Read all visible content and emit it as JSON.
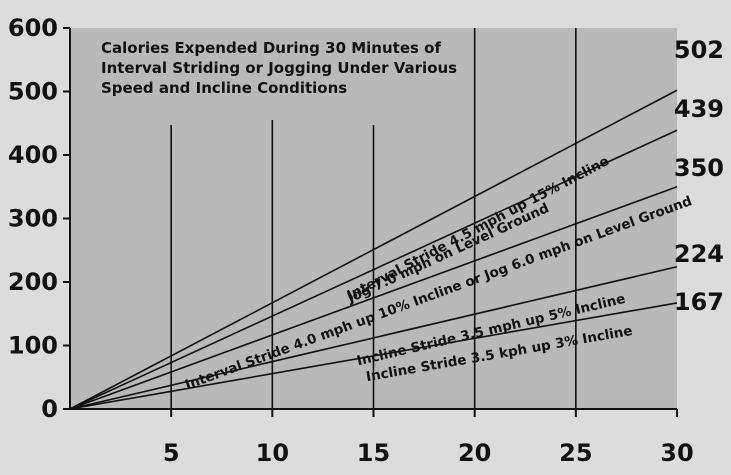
{
  "chart_data": {
    "type": "line",
    "title_lines": [
      "Calories Expended During 30 Minutes of",
      "Interval Striding or Jogging Under Various",
      "Speed and Incline Conditions"
    ],
    "xlabel": "",
    "ylabel": "",
    "xlim": [
      0,
      30
    ],
    "ylim": [
      0,
      600
    ],
    "x_ticks": [
      5,
      10,
      15,
      20,
      25,
      30
    ],
    "y_ticks": [
      0,
      100,
      200,
      300,
      400,
      500,
      600
    ],
    "vertical_gridlines_at": [
      5,
      10,
      15,
      20,
      25
    ],
    "series": [
      {
        "name": "Interval Stride 4.5 mph up 15% Incline",
        "x": [
          0,
          30
        ],
        "y": [
          0,
          502
        ],
        "end_label": "502"
      },
      {
        "name": "Jog 7.0 mph on Level Ground",
        "x": [
          0,
          30
        ],
        "y": [
          0,
          439
        ],
        "end_label": "439"
      },
      {
        "name": "Interval Stride 4.0 mph up 10% Incline or Jog 6.0 mph on Level Ground",
        "x": [
          0,
          30
        ],
        "y": [
          0,
          350
        ],
        "end_label": "350"
      },
      {
        "name": "Incline Stride 3.5 mph up 5% Incline",
        "x": [
          0,
          30
        ],
        "y": [
          0,
          224
        ],
        "end_label": "224"
      },
      {
        "name": "Incline Stride 3.5 kph up 3% Incline",
        "x": [
          0,
          30
        ],
        "y": [
          0,
          167
        ],
        "end_label": "167"
      }
    ],
    "colors": {
      "plot_background": "#b9b9b9",
      "page_background": "#dcdcdc",
      "line": "#111111"
    }
  }
}
